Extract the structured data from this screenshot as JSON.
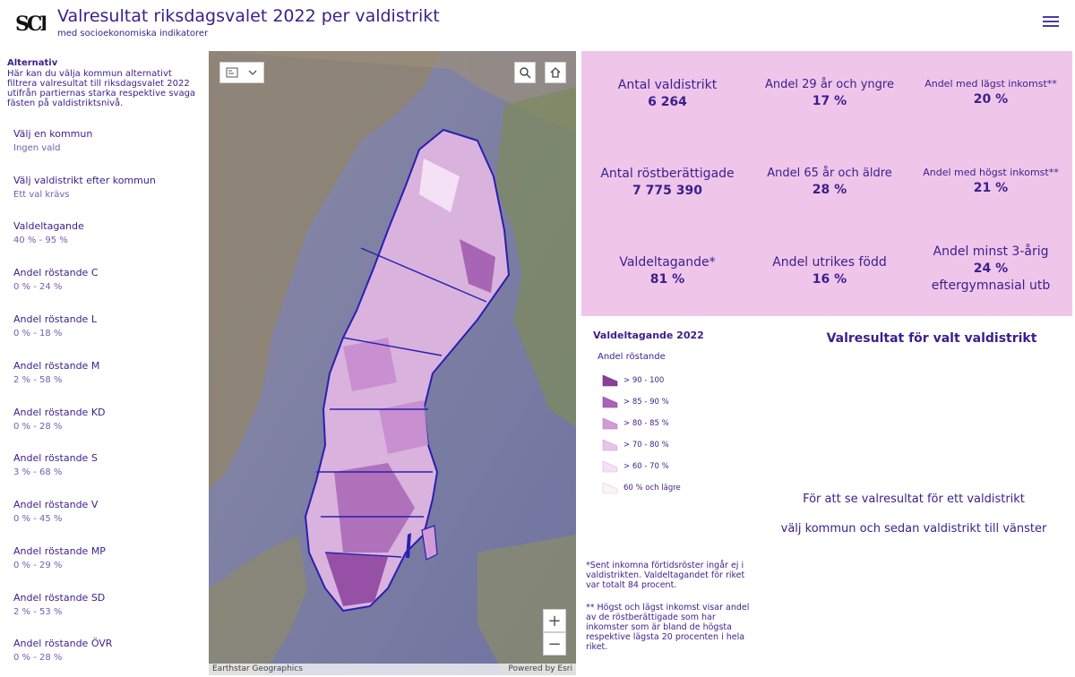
{
  "header": {
    "title": "Valresultat riksdagsvalet 2022 per valdistrikt",
    "subtitle": "med socioekonomiska indikatorer"
  },
  "sidebar": {
    "intro_title": "Alternativ",
    "intro_text": "Här kan du välja kommun alternativt filtrera valresultat till riksdagsvalet 2022 utifrån partiernas starka respektive svaga fästen på valdistriktsnivå.",
    "filters": [
      {
        "label": "Välj en kommun",
        "value": "Ingen vald"
      },
      {
        "label": "Välj valdistrikt efter kommun",
        "value": "Ett val krävs"
      },
      {
        "label": "Valdeltagande",
        "value": "40 % - 95 %"
      },
      {
        "label": "Andel röstande C",
        "value": "0 % - 24 %"
      },
      {
        "label": "Andel röstande L",
        "value": "0 % - 18 %"
      },
      {
        "label": "Andel röstande M",
        "value": "2 % - 58 %"
      },
      {
        "label": "Andel röstande KD",
        "value": "0 % - 28 %"
      },
      {
        "label": "Andel röstande S",
        "value": "3 % - 68 %"
      },
      {
        "label": "Andel röstande V",
        "value": "0 % - 45 %"
      },
      {
        "label": "Andel röstande MP",
        "value": "0 % - 29 %"
      },
      {
        "label": "Andel röstande SD",
        "value": "2 % - 53 %"
      },
      {
        "label": "Andel röstande ÖVR",
        "value": "0 % - 28 %"
      }
    ]
  },
  "map": {
    "attribution_left": "Earthstar Geographics",
    "attribution_right": "Powered by Esri",
    "zoom_in": "+",
    "zoom_out": "−"
  },
  "stats": [
    {
      "label": "Antal valdistrikt",
      "value": "6 264"
    },
    {
      "label": "Andel 29 år och yngre",
      "value": "17 %"
    },
    {
      "label": "Andel med lägst inkomst**",
      "value": "20 %"
    },
    {
      "label": "Antal röstberättigade",
      "value": "7 775 390"
    },
    {
      "label": "Andel 65 år och äldre",
      "value": "28 %"
    },
    {
      "label": "Andel med högst inkomst**",
      "value": "21 %"
    },
    {
      "label": "Valdeltagande*",
      "value": "81 %"
    },
    {
      "label": "Andel utrikes född",
      "value": "16 %"
    },
    {
      "label": "Andel minst 3-årig",
      "value": "24 %",
      "extra": "eftergymnasial utb"
    }
  ],
  "legend": {
    "title": "Valdeltagande 2022",
    "subtitle": "Andel röstande",
    "items": [
      {
        "label": "> 90 - 100",
        "color": "#8a3f9c"
      },
      {
        "label": "> 85 - 90 %",
        "color": "#a865b5"
      },
      {
        "label": "> 80 - 85 %",
        "color": "#d09bd6"
      },
      {
        "label": "> 70 - 80 %",
        "color": "#e8c3ea"
      },
      {
        "label": "> 60 - 70 %",
        "color": "#f4e1f5"
      },
      {
        "label": "60 % och lägre",
        "color": "#fbf3fb"
      }
    ]
  },
  "footnotes": {
    "note1": "*Sent inkomna förtidsröster ingår ej i valdistrikten. Valdeltagandet för riket var totalt 84 procent.",
    "note2": "** Högst och lägst inkomst visar andel av de röstberättigade som har inkomster som är bland de högsta respektive lägsta 20 procenten i hela riket."
  },
  "results": {
    "title": "Valresultat för valt valdistrikt",
    "message_line1": "För att se valresultat för ett valdistrikt",
    "message_line2": "välj kommun och sedan valdistrikt till vänster"
  }
}
